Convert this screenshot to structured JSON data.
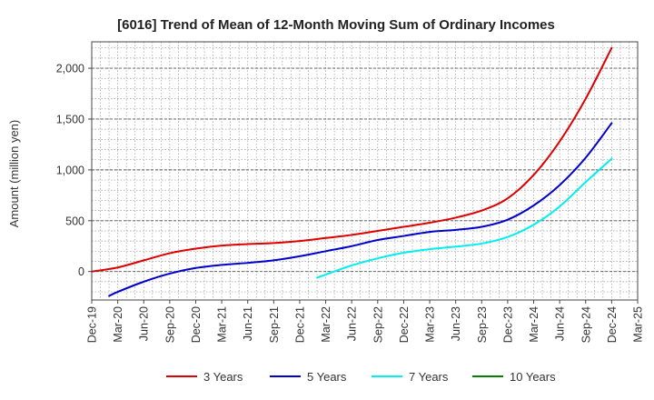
{
  "chart_data": {
    "type": "line",
    "title": "[6016]  Trend of Mean of 12-Month Moving Sum of Ordinary Incomes",
    "xlabel": "",
    "ylabel": "Amount (million yen)",
    "ylim": [
      -280,
      2260
    ],
    "yticks": [
      0,
      500,
      1000,
      1500,
      2000
    ],
    "ytick_labels": [
      "0",
      "500",
      "1,000",
      "1,500",
      "2,000"
    ],
    "x_categories": [
      "Dec-19",
      "Mar-20",
      "Jun-20",
      "Sep-20",
      "Dec-20",
      "Mar-21",
      "Jun-21",
      "Sep-21",
      "Dec-21",
      "Mar-22",
      "Jun-22",
      "Sep-22",
      "Dec-22",
      "Mar-23",
      "Jun-23",
      "Sep-23",
      "Dec-23",
      "Mar-24",
      "Jun-24",
      "Sep-24",
      "Dec-24",
      "Mar-25"
    ],
    "grid": true,
    "legend_position": "bottom",
    "series": [
      {
        "name": "3 Years",
        "color": "#dd0000",
        "x": [
          0,
          1,
          2,
          3,
          4,
          5,
          6,
          7,
          8,
          9,
          10,
          11,
          12,
          13,
          14,
          15,
          16,
          17,
          18,
          19,
          20
        ],
        "values": [
          0,
          40,
          110,
          180,
          225,
          255,
          270,
          280,
          300,
          330,
          360,
          400,
          440,
          480,
          530,
          600,
          720,
          950,
          1280,
          1700,
          2200
        ]
      },
      {
        "name": "5 Years",
        "color": "#0000cc",
        "x": [
          0.67,
          1,
          2,
          3,
          4,
          5,
          6,
          7,
          8,
          9,
          10,
          11,
          12,
          13,
          14,
          15,
          16,
          17,
          18,
          19,
          20
        ],
        "values": [
          -240,
          -200,
          -100,
          -20,
          35,
          65,
          85,
          110,
          150,
          200,
          250,
          310,
          350,
          390,
          410,
          440,
          510,
          650,
          850,
          1120,
          1460
        ]
      },
      {
        "name": "7 Years",
        "color": "#00eeee",
        "x": [
          8.67,
          9,
          10,
          11,
          12,
          13,
          14,
          15,
          16,
          17,
          18,
          19,
          20
        ],
        "values": [
          -60,
          -30,
          60,
          130,
          185,
          220,
          245,
          275,
          340,
          460,
          640,
          880,
          1110
        ]
      },
      {
        "name": "10 Years",
        "color": "#008000",
        "x": [],
        "values": []
      }
    ]
  }
}
